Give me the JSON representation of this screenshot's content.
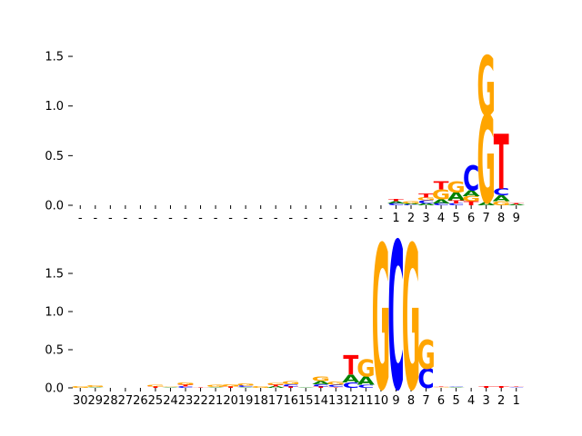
{
  "colors": {
    "A": "#008000",
    "C": "#0000ff",
    "G": "#ffa500",
    "T": "#ff0000",
    "axis": "#000000"
  },
  "chart_data": [
    {
      "type": "sequence-logo",
      "title": "",
      "xlabel": "",
      "ylabel": "",
      "ylim": [
        0,
        1.75
      ],
      "yticks": [
        0.0,
        0.5,
        1.0,
        1.5
      ],
      "ytick_labels": [
        "0.0",
        "0.5",
        "1.0",
        "1.5"
      ],
      "xtick_labels": [
        "-",
        "-",
        "-",
        "-",
        "-",
        "-",
        "-",
        "-",
        "-",
        "-",
        "-",
        "-",
        "-",
        "-",
        "-",
        "-",
        "-",
        "-",
        "-",
        "-",
        "-",
        "1",
        "2",
        "3",
        "4",
        "5",
        "6",
        "7",
        "8",
        "9"
      ],
      "columns": [
        [],
        [],
        [],
        [],
        [],
        [],
        [],
        [],
        [],
        [],
        [],
        [],
        [],
        [],
        [],
        [],
        [],
        [],
        [],
        [],
        [],
        [
          [
            "C",
            0.02
          ],
          [
            "A",
            0.02
          ],
          [
            "T",
            0.02
          ]
        ],
        [
          [
            "C",
            0.01
          ],
          [
            "A",
            0.01
          ],
          [
            "G",
            0.02
          ]
        ],
        [
          [
            "A",
            0.02
          ],
          [
            "C",
            0.03
          ],
          [
            "G",
            0.03
          ],
          [
            "T",
            0.04
          ]
        ],
        [
          [
            "C",
            0.02
          ],
          [
            "A",
            0.04
          ],
          [
            "G",
            0.1
          ],
          [
            "T",
            0.08
          ]
        ],
        [
          [
            "C",
            0.02
          ],
          [
            "T",
            0.03
          ],
          [
            "A",
            0.08
          ],
          [
            "G",
            0.11
          ]
        ],
        [
          [
            "T",
            0.04
          ],
          [
            "G",
            0.05
          ],
          [
            "A",
            0.06
          ],
          [
            "C",
            0.25
          ]
        ],
        [
          [
            "A",
            0.03
          ],
          [
            "G",
            0.88
          ],
          [
            "G",
            0.6
          ]
        ],
        [
          [
            "G",
            0.04
          ],
          [
            "A",
            0.06
          ],
          [
            "C",
            0.07
          ],
          [
            "T",
            0.55
          ]
        ],
        [
          [
            "A",
            0.01
          ],
          [
            "T",
            0.01
          ]
        ]
      ]
    },
    {
      "type": "sequence-logo",
      "title": "",
      "xlabel": "",
      "ylabel": "",
      "ylim": [
        0,
        2.0
      ],
      "yticks": [
        0.0,
        0.5,
        1.0,
        1.5
      ],
      "ytick_labels": [
        "0.0",
        "0.5",
        "1.0",
        "1.5"
      ],
      "xtick_labels": [
        "30",
        "29",
        "28",
        "27",
        "26",
        "25",
        "24",
        "23",
        "22",
        "21",
        "20",
        "19",
        "18",
        "17",
        "16",
        "15",
        "14",
        "13",
        "12",
        "11",
        "10",
        "9",
        "8",
        "7",
        "6",
        "5",
        "4",
        "3",
        "2",
        "1"
      ],
      "columns": [
        [
          [
            "G",
            0.02
          ]
        ],
        [
          [
            "A",
            0.01
          ],
          [
            "G",
            0.02
          ]
        ],
        [],
        [],
        [],
        [
          [
            "T",
            0.02
          ],
          [
            "G",
            0.02
          ]
        ],
        [
          [
            "A",
            0.01
          ],
          [
            "G",
            0.01
          ]
        ],
        [
          [
            "C",
            0.02
          ],
          [
            "T",
            0.02
          ],
          [
            "G",
            0.03
          ]
        ],
        [
          [
            "T",
            0.01
          ]
        ],
        [
          [
            "A",
            0.01
          ],
          [
            "G",
            0.03
          ]
        ],
        [
          [
            "T",
            0.02
          ],
          [
            "G",
            0.03
          ]
        ],
        [
          [
            "A",
            0.01
          ],
          [
            "C",
            0.02
          ],
          [
            "G",
            0.03
          ]
        ],
        [
          [
            "G",
            0.02
          ]
        ],
        [
          [
            "A",
            0.02
          ],
          [
            "T",
            0.02
          ],
          [
            "G",
            0.02
          ]
        ],
        [
          [
            "T",
            0.02
          ],
          [
            "C",
            0.03
          ],
          [
            "G",
            0.04
          ]
        ],
        [
          [
            "A",
            0.01
          ]
        ],
        [
          [
            "T",
            0.02
          ],
          [
            "C",
            0.03
          ],
          [
            "A",
            0.04
          ],
          [
            "G",
            0.06
          ]
        ],
        [
          [
            "T",
            0.01
          ],
          [
            "C",
            0.03
          ],
          [
            "G",
            0.04
          ]
        ],
        [
          [
            "C",
            0.07
          ],
          [
            "A",
            0.1
          ],
          [
            "T",
            0.25
          ]
        ],
        [
          [
            "C",
            0.04
          ],
          [
            "A",
            0.11
          ],
          [
            "G",
            0.22
          ]
        ],
        [
          [
            "G",
            1.88
          ]
        ],
        [
          [
            "C",
            1.92
          ]
        ],
        [
          [
            "G",
            1.88
          ]
        ],
        [
          [
            "C",
            0.25
          ],
          [
            "G",
            0.38
          ]
        ],
        [
          [
            "G",
            0.01
          ],
          [
            "T",
            0.01
          ]
        ],
        [
          [
            "A",
            0.01
          ],
          [
            "C",
            0.01
          ]
        ],
        [],
        [
          [
            "T",
            0.02
          ]
        ],
        [
          [
            "T",
            0.02
          ]
        ],
        [
          [
            "C",
            0.01
          ],
          [
            "T",
            0.01
          ]
        ]
      ]
    }
  ]
}
